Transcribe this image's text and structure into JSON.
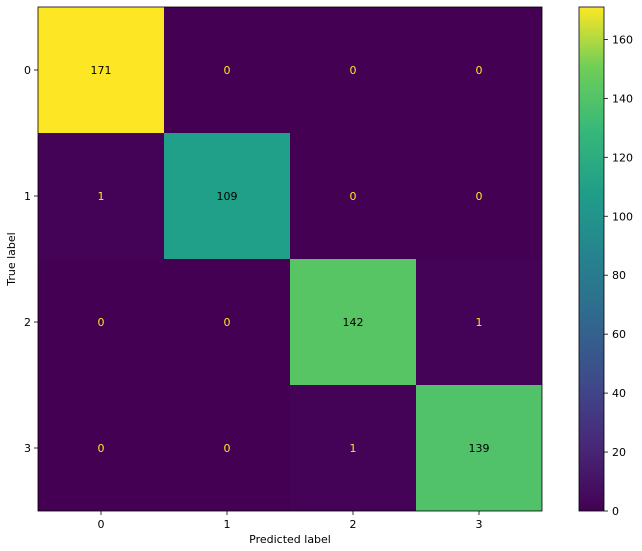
{
  "chart_data": {
    "type": "heatmap",
    "title": "",
    "xlabel": "Predicted label",
    "ylabel": "True label",
    "x_categories": [
      "0",
      "1",
      "2",
      "3"
    ],
    "y_categories": [
      "0",
      "1",
      "2",
      "3"
    ],
    "matrix": [
      [
        171,
        0,
        0,
        0
      ],
      [
        1,
        109,
        0,
        0
      ],
      [
        0,
        0,
        142,
        1
      ],
      [
        0,
        0,
        1,
        139
      ]
    ],
    "colormap": "viridis",
    "colorbar": {
      "range": [
        0,
        171
      ],
      "ticks": [
        0,
        20,
        40,
        60,
        80,
        100,
        120,
        140,
        160
      ]
    },
    "text_color_dark_cells": "#fde725",
    "text_color_light_cells": "#000000",
    "grid": false
  }
}
